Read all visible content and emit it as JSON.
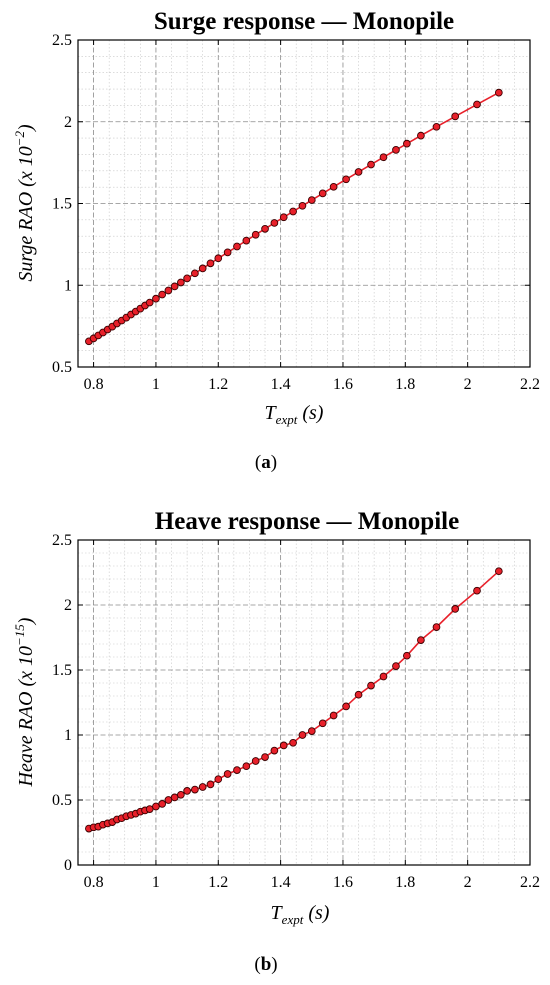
{
  "chart_data": [
    {
      "type": "line",
      "panel_label": "a",
      "title": "Surge response — Monopile",
      "xlabel": {
        "main": "T",
        "sub": "expt",
        "rest": " (s)"
      },
      "ylabel": {
        "main": "Surge RAO (x 10",
        "sup": "−2",
        "rest": ")"
      },
      "xlim": [
        0.75,
        2.2
      ],
      "ylim": [
        0.5,
        2.5
      ],
      "xticks": [
        0.8,
        1,
        1.2,
        1.4,
        1.6,
        1.8,
        2,
        2.2
      ],
      "xtick_labels": [
        "0.8",
        "1",
        "1.2",
        "1.4",
        "1.6",
        "1.8",
        "2",
        "2.2"
      ],
      "yticks": [
        0.5,
        1,
        1.5,
        2,
        2.5
      ],
      "ytick_labels": [
        "0.5",
        "1",
        "1.5",
        "2",
        "2.5"
      ],
      "grid": true,
      "marker_color": "#e8202a",
      "line_color": "#e8202a",
      "x": [
        0.785,
        0.8,
        0.815,
        0.83,
        0.845,
        0.86,
        0.875,
        0.89,
        0.905,
        0.92,
        0.935,
        0.95,
        0.965,
        0.98,
        1.0,
        1.02,
        1.04,
        1.06,
        1.08,
        1.1,
        1.125,
        1.15,
        1.175,
        1.2,
        1.23,
        1.26,
        1.29,
        1.32,
        1.35,
        1.38,
        1.41,
        1.44,
        1.47,
        1.5,
        1.535,
        1.57,
        1.61,
        1.65,
        1.69,
        1.73,
        1.77,
        1.805,
        1.85,
        1.9,
        1.96,
        2.03,
        2.1
      ],
      "y": [
        0.657,
        0.675,
        0.693,
        0.711,
        0.729,
        0.747,
        0.766,
        0.784,
        0.802,
        0.821,
        0.839,
        0.857,
        0.876,
        0.894,
        0.918,
        0.943,
        0.968,
        0.993,
        1.017,
        1.042,
        1.073,
        1.103,
        1.134,
        1.165,
        1.201,
        1.237,
        1.273,
        1.309,
        1.345,
        1.381,
        1.416,
        1.451,
        1.486,
        1.521,
        1.562,
        1.602,
        1.648,
        1.693,
        1.738,
        1.783,
        1.828,
        1.866,
        1.915,
        1.969,
        2.033,
        2.106,
        2.178
      ]
    },
    {
      "type": "line",
      "panel_label": "b",
      "title": "Heave response — Monopile",
      "xlabel": {
        "main": "T",
        "sub": "expt",
        "rest": " (s)"
      },
      "ylabel": {
        "main": "Heave RAO (x 10",
        "sup": "−15",
        "rest": ")"
      },
      "xlim": [
        0.75,
        2.2
      ],
      "ylim": [
        0,
        2.5
      ],
      "xticks": [
        0.8,
        1,
        1.2,
        1.4,
        1.6,
        1.8,
        2,
        2.2
      ],
      "xtick_labels": [
        "0.8",
        "1",
        "1.2",
        "1.4",
        "1.6",
        "1.8",
        "2",
        "2.2"
      ],
      "yticks": [
        0,
        0.5,
        1,
        1.5,
        2,
        2.5
      ],
      "ytick_labels": [
        "0",
        "0.5",
        "1",
        "1.5",
        "2",
        "2.5"
      ],
      "grid": true,
      "marker_color": "#e8202a",
      "line_color": "#e8202a",
      "x": [
        0.785,
        0.8,
        0.815,
        0.83,
        0.845,
        0.86,
        0.875,
        0.89,
        0.905,
        0.92,
        0.935,
        0.95,
        0.965,
        0.98,
        1.0,
        1.02,
        1.04,
        1.06,
        1.08,
        1.1,
        1.125,
        1.15,
        1.175,
        1.2,
        1.23,
        1.26,
        1.29,
        1.32,
        1.35,
        1.38,
        1.41,
        1.44,
        1.47,
        1.5,
        1.535,
        1.57,
        1.61,
        1.65,
        1.69,
        1.73,
        1.77,
        1.805,
        1.85,
        1.9,
        1.96,
        2.03,
        2.1
      ],
      "y": [
        0.28,
        0.29,
        0.295,
        0.31,
        0.32,
        0.33,
        0.35,
        0.36,
        0.375,
        0.385,
        0.395,
        0.41,
        0.42,
        0.43,
        0.45,
        0.47,
        0.5,
        0.52,
        0.54,
        0.57,
        0.58,
        0.6,
        0.62,
        0.66,
        0.7,
        0.73,
        0.76,
        0.8,
        0.83,
        0.88,
        0.92,
        0.94,
        1.0,
        1.03,
        1.09,
        1.15,
        1.22,
        1.31,
        1.38,
        1.45,
        1.53,
        1.61,
        1.73,
        1.83,
        1.97,
        2.11,
        2.26
      ]
    }
  ]
}
